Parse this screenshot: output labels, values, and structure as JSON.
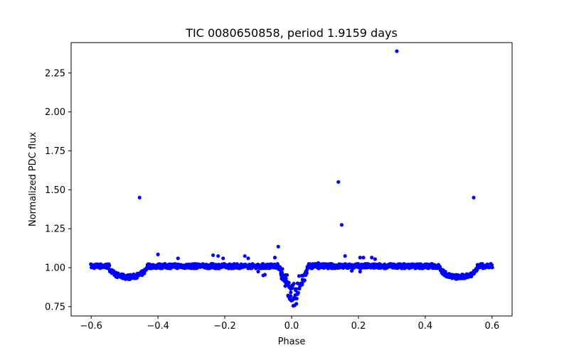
{
  "chart_data": {
    "type": "scatter",
    "title": "TIC 0080650858, period 1.9159 days",
    "xlabel": "Phase",
    "ylabel": "Normalized PDC flux",
    "xlim": [
      -0.66,
      0.66
    ],
    "ylim": [
      0.69,
      2.445
    ],
    "xticks": [
      -0.6,
      -0.4,
      -0.2,
      0.0,
      0.2,
      0.4,
      0.6
    ],
    "xtick_labels": [
      "−0.6",
      "−0.4",
      "−0.2",
      "0.0",
      "0.2",
      "0.4",
      "0.6"
    ],
    "yticks": [
      0.75,
      1.0,
      1.25,
      1.5,
      1.75,
      2.0,
      2.25
    ],
    "ytick_labels": [
      "0.75",
      "1.00",
      "1.25",
      "1.50",
      "1.75",
      "2.00",
      "2.25"
    ],
    "grid": false,
    "marker_color": "#0000ff",
    "baseline_flux": 1.01,
    "secondary_eclipse": {
      "centers": [
        -0.49,
        0.5
      ],
      "min_flux": 0.94,
      "half_width": 0.045
    },
    "primary_eclipse": {
      "center": 0.005,
      "min_flux": 0.72,
      "half_width": 0.045
    },
    "phase_range": [
      -0.6,
      0.6
    ],
    "outliers": [
      {
        "x": -0.455,
        "y": 1.45
      },
      {
        "x": 0.14,
        "y": 1.55
      },
      {
        "x": 0.15,
        "y": 1.275
      },
      {
        "x": 0.315,
        "y": 2.39
      },
      {
        "x": 0.545,
        "y": 1.45
      },
      {
        "x": -0.4,
        "y": 1.085
      },
      {
        "x": -0.34,
        "y": 1.06
      },
      {
        "x": -0.235,
        "y": 1.08
      },
      {
        "x": -0.22,
        "y": 1.075
      },
      {
        "x": -0.205,
        "y": 1.06
      },
      {
        "x": -0.14,
        "y": 1.075
      },
      {
        "x": -0.13,
        "y": 1.06
      },
      {
        "x": -0.04,
        "y": 1.135
      },
      {
        "x": -0.05,
        "y": 1.065
      },
      {
        "x": -0.1,
        "y": 0.975
      },
      {
        "x": -0.08,
        "y": 0.955
      },
      {
        "x": -0.085,
        "y": 0.95
      },
      {
        "x": -0.03,
        "y": 0.93
      },
      {
        "x": 0.08,
        "y": 1.03
      },
      {
        "x": 0.16,
        "y": 1.075
      },
      {
        "x": 0.18,
        "y": 0.98
      },
      {
        "x": 0.205,
        "y": 1.065
      },
      {
        "x": 0.215,
        "y": 1.065
      },
      {
        "x": 0.24,
        "y": 1.065
      },
      {
        "x": 0.25,
        "y": 1.055
      },
      {
        "x": 0.205,
        "y": 0.975
      }
    ]
  }
}
